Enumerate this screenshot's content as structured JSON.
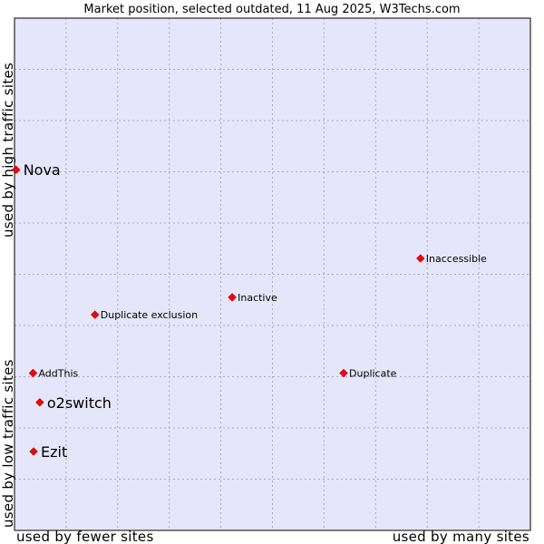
{
  "chart_data": {
    "type": "scatter",
    "title": "Market position, selected outdated, 11 Aug 2025, W3Techs.com",
    "axis_labels": {
      "x_low": "used by fewer sites",
      "x_high": "used by many sites",
      "y_low": "used by low traffic sites",
      "y_high": "used by high traffic sites"
    },
    "xlim": [
      0,
      100
    ],
    "ylim": [
      0,
      100
    ],
    "grid": true,
    "colors": {
      "plot_background": "#e6e6fa",
      "grid": "#a9a9c9",
      "border": "#000000",
      "marker": "#ff0000"
    },
    "points": [
      {
        "name": "Nova",
        "x": 0.3,
        "y": 70.4,
        "emphasis": true
      },
      {
        "name": "Inaccessible",
        "x": 78.7,
        "y": 53.1,
        "emphasis": false
      },
      {
        "name": "Inactive",
        "x": 42.2,
        "y": 45.5,
        "emphasis": false
      },
      {
        "name": "Duplicate exclusion",
        "x": 15.6,
        "y": 42.1,
        "emphasis": false
      },
      {
        "name": "AddThis",
        "x": 3.6,
        "y": 30.7,
        "emphasis": false
      },
      {
        "name": "Duplicate",
        "x": 63.8,
        "y": 30.7,
        "emphasis": false
      },
      {
        "name": "o2switch",
        "x": 4.9,
        "y": 25.0,
        "emphasis": true
      },
      {
        "name": "Ezit",
        "x": 3.7,
        "y": 15.4,
        "emphasis": true
      }
    ]
  }
}
